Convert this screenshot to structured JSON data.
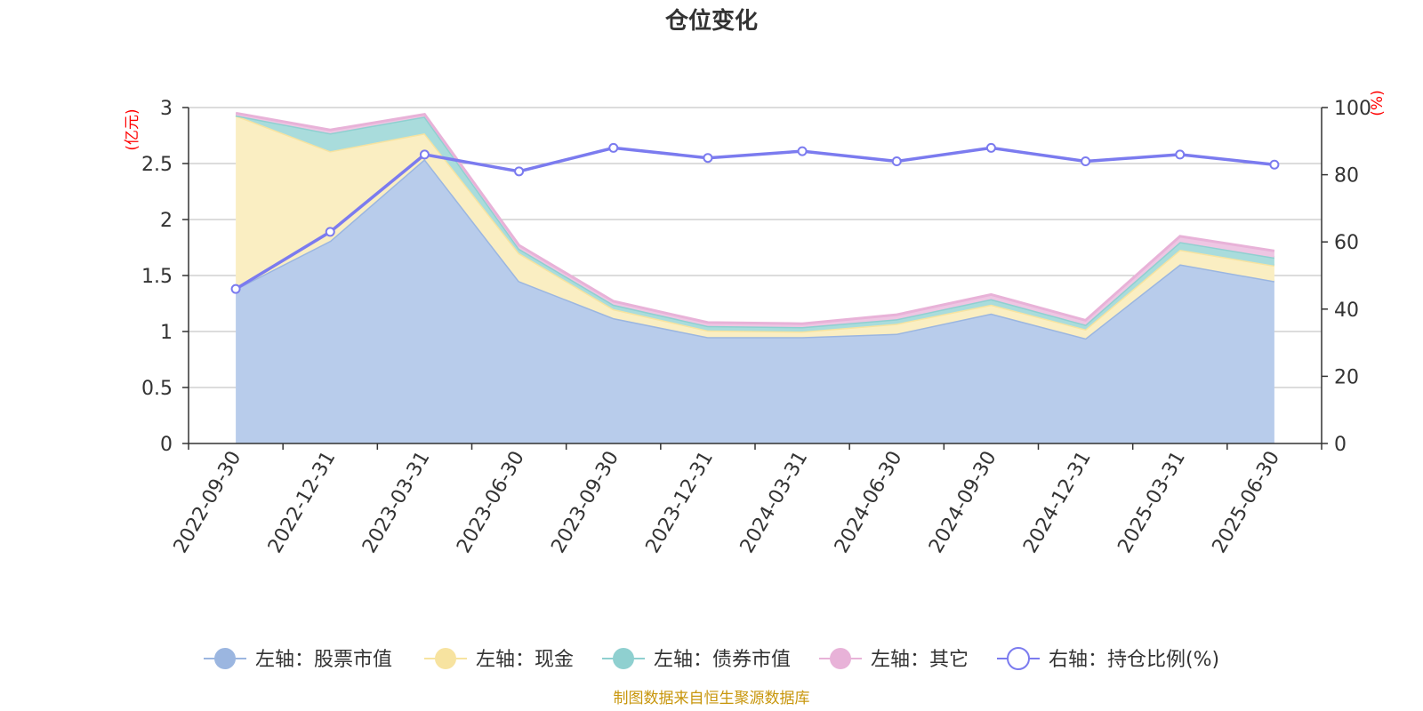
{
  "title": "仓位变化",
  "source_note": "制图数据来自恒生聚源数据库",
  "left_unit": "(亿元)",
  "right_unit": "(%)",
  "chart_data": {
    "type": "area",
    "title": "仓位变化",
    "categories": [
      "2022-09-30",
      "2022-12-31",
      "2023-03-31",
      "2023-06-30",
      "2023-09-30",
      "2023-12-31",
      "2024-03-31",
      "2024-06-30",
      "2024-09-30",
      "2024-12-31",
      "2025-03-31",
      "2025-06-30"
    ],
    "left_axis": {
      "label": "(亿元)",
      "min": 0,
      "max": 3,
      "ticks": [
        "0",
        "0.5",
        "1",
        "1.5",
        "2",
        "2.5",
        "3"
      ]
    },
    "right_axis": {
      "label": "(%)",
      "min": 0,
      "max": 100,
      "ticks": [
        "0",
        "20",
        "40",
        "60",
        "80",
        "100"
      ]
    },
    "stacked": true,
    "series": [
      {
        "name": "左轴：股票市值",
        "axis": "left",
        "type": "area",
        "color": "#9bb6e0",
        "fill": "#b8cceb",
        "values": [
          1.38,
          1.81,
          2.54,
          1.45,
          1.12,
          0.95,
          0.95,
          0.98,
          1.16,
          0.94,
          1.6,
          1.45
        ]
      },
      {
        "name": "左轴：现金",
        "axis": "left",
        "type": "area",
        "color": "#f7e3a0",
        "fill": "#faeec2",
        "values": [
          1.55,
          0.8,
          0.23,
          0.25,
          0.08,
          0.06,
          0.05,
          0.09,
          0.08,
          0.08,
          0.13,
          0.14
        ]
      },
      {
        "name": "左轴：债券市值",
        "axis": "left",
        "type": "area",
        "color": "#8fd0d0",
        "fill": "#a9dcdc",
        "values": [
          0.0,
          0.16,
          0.15,
          0.04,
          0.04,
          0.04,
          0.04,
          0.04,
          0.05,
          0.04,
          0.07,
          0.07
        ]
      },
      {
        "name": "左轴：其它",
        "axis": "left",
        "type": "area",
        "color": "#e8b2d8",
        "fill": "#eec6e3",
        "values": [
          0.02,
          0.03,
          0.02,
          0.03,
          0.03,
          0.03,
          0.03,
          0.04,
          0.04,
          0.04,
          0.05,
          0.06
        ]
      },
      {
        "name": "右轴：持仓比例(%)",
        "axis": "right",
        "type": "line",
        "color": "#7b7bef",
        "values": [
          46,
          63,
          86,
          81,
          88,
          85,
          87,
          84,
          88,
          84,
          86,
          83
        ]
      }
    ],
    "grid": true,
    "legend": "bottom"
  }
}
